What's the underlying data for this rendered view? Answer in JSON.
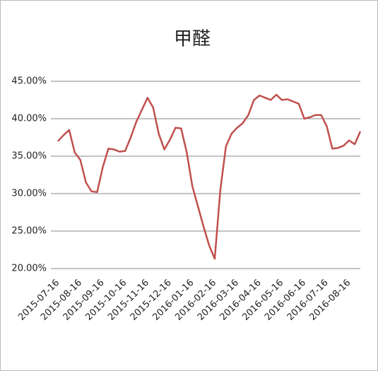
{
  "chart_data": {
    "type": "line",
    "title": "甲醛",
    "categories": [
      "2015-07-16",
      null,
      null,
      null,
      "2015-08-16",
      null,
      null,
      null,
      "2015-09-16",
      null,
      null,
      null,
      "2015-10-16",
      null,
      null,
      null,
      "2015-11-16",
      null,
      null,
      null,
      "2015-12-16",
      null,
      null,
      null,
      "2016-01-16",
      null,
      null,
      null,
      "2016-02-16",
      null,
      null,
      null,
      "2016-03-16",
      null,
      null,
      null,
      "2016-04-16",
      null,
      null,
      null,
      "2016-05-16",
      null,
      null,
      null,
      "2016-06-16",
      null,
      null,
      null,
      "2016-07-16",
      null,
      null,
      null,
      "2016-08-16",
      null,
      null
    ],
    "series": [
      {
        "name": "甲醛",
        "color": "#c0504d",
        "values": [
          37,
          37.8,
          38.5,
          35.5,
          34.5,
          31.5,
          30.3,
          30.2,
          33.5,
          36,
          35.9,
          35.6,
          35.7,
          37.5,
          39.6,
          41.2,
          42.8,
          41.5,
          38,
          35.9,
          37.2,
          38.8,
          38.7,
          35.5,
          31,
          28.3,
          25.6,
          23.1,
          21.3,
          30.5,
          36.3,
          38,
          38.8,
          39.4,
          40.5,
          42.5,
          43.1,
          42.8,
          42.5,
          43.2,
          42.5,
          42.6,
          42.3,
          42,
          40,
          40.2,
          40.5,
          40.5,
          39,
          36,
          36.1,
          36.4,
          37.1,
          36.6,
          38.3
        ]
      }
    ],
    "ylim": [
      20,
      45
    ],
    "yticks": [
      {
        "value": 20,
        "label": "20.00%"
      },
      {
        "value": 25,
        "label": "25.00%"
      },
      {
        "value": 30,
        "label": "30.00%"
      },
      {
        "value": 35,
        "label": "35.00%"
      },
      {
        "value": 40,
        "label": "40.00%"
      },
      {
        "value": 45,
        "label": "45.00%"
      }
    ],
    "grid": true
  }
}
